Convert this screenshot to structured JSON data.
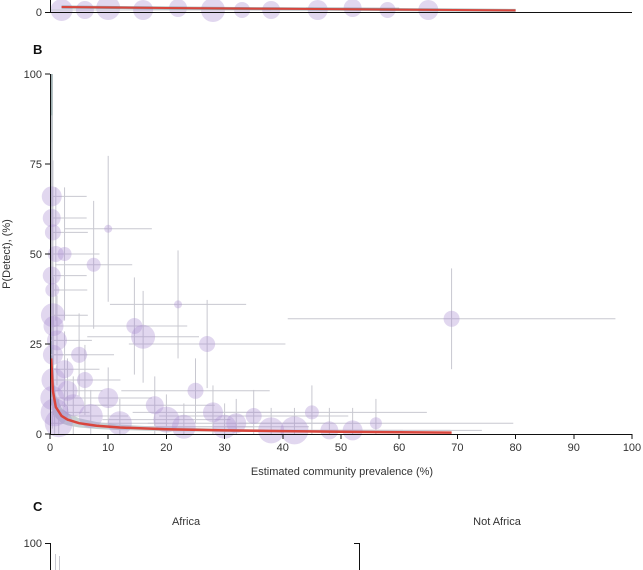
{
  "panels": {
    "top_partial": {
      "y_tick_zero": "0"
    },
    "B": {
      "letter": "B",
      "ylabel": "P(Detect), (%)",
      "xlabel": "Estimated community prevalence (%)",
      "x_ticks": [
        "0",
        "10",
        "20",
        "30",
        "40",
        "50",
        "60",
        "70",
        "80",
        "90",
        "100"
      ],
      "y_ticks": [
        "0",
        "25",
        "50",
        "75",
        "100"
      ]
    },
    "C": {
      "letter": "C",
      "facets": [
        "Africa",
        "Not Africa"
      ],
      "y_tick_top": "100"
    }
  },
  "colors": {
    "points": "#a98bd1",
    "error_bars": "#c8c8d0",
    "fit_line": "#d9453c",
    "ci_band": "#5f7d80"
  },
  "chart_data": [
    {
      "type": "scatter",
      "panel": "B",
      "xlabel": "Estimated community prevalence (%)",
      "ylabel": "P(Detect), (%)",
      "xlim": [
        0,
        100
      ],
      "ylim": [
        0,
        100
      ],
      "grid": false,
      "points": [
        {
          "x": 0.3,
          "y": 66,
          "size": 10
        },
        {
          "x": 0.3,
          "y": 60,
          "size": 9
        },
        {
          "x": 0.5,
          "y": 56,
          "size": 8
        },
        {
          "x": 1.0,
          "y": 50,
          "size": 8
        },
        {
          "x": 2.5,
          "y": 50,
          "size": 7
        },
        {
          "x": 0.3,
          "y": 44,
          "size": 9
        },
        {
          "x": 0.4,
          "y": 40,
          "size": 7
        },
        {
          "x": 0.5,
          "y": 33,
          "size": 12
        },
        {
          "x": 0.6,
          "y": 30,
          "size": 10
        },
        {
          "x": 1.2,
          "y": 26,
          "size": 10
        },
        {
          "x": 0.5,
          "y": 22,
          "size": 10
        },
        {
          "x": 0.6,
          "y": 15,
          "size": 12
        },
        {
          "x": 0.4,
          "y": 10,
          "size": 12
        },
        {
          "x": 0.8,
          "y": 6,
          "size": 14
        },
        {
          "x": 1.5,
          "y": 3,
          "size": 14
        },
        {
          "x": 2.5,
          "y": 18,
          "size": 9
        },
        {
          "x": 3.0,
          "y": 12,
          "size": 10
        },
        {
          "x": 4.0,
          "y": 8,
          "size": 11
        },
        {
          "x": 5.0,
          "y": 22,
          "size": 8
        },
        {
          "x": 6.0,
          "y": 15,
          "size": 8
        },
        {
          "x": 7.0,
          "y": 5,
          "size": 12
        },
        {
          "x": 7.5,
          "y": 47,
          "size": 7
        },
        {
          "x": 10.0,
          "y": 57,
          "size": 4
        },
        {
          "x": 10.0,
          "y": 10,
          "size": 10
        },
        {
          "x": 12.0,
          "y": 3,
          "size": 12
        },
        {
          "x": 14.5,
          "y": 30,
          "size": 8
        },
        {
          "x": 16.0,
          "y": 27,
          "size": 12
        },
        {
          "x": 18.0,
          "y": 8,
          "size": 9
        },
        {
          "x": 20.0,
          "y": 4,
          "size": 13
        },
        {
          "x": 22.0,
          "y": 36,
          "size": 4
        },
        {
          "x": 23.0,
          "y": 2,
          "size": 12
        },
        {
          "x": 25.0,
          "y": 12,
          "size": 8
        },
        {
          "x": 27.0,
          "y": 25,
          "size": 8
        },
        {
          "x": 28.0,
          "y": 6,
          "size": 10
        },
        {
          "x": 30.0,
          "y": 2,
          "size": 12
        },
        {
          "x": 32.0,
          "y": 3,
          "size": 10
        },
        {
          "x": 35.0,
          "y": 5,
          "size": 8
        },
        {
          "x": 38.0,
          "y": 1,
          "size": 13
        },
        {
          "x": 42.0,
          "y": 1,
          "size": 14
        },
        {
          "x": 45.0,
          "y": 6,
          "size": 7
        },
        {
          "x": 48.0,
          "y": 1,
          "size": 9
        },
        {
          "x": 52.0,
          "y": 1,
          "size": 10
        },
        {
          "x": 56.0,
          "y": 3,
          "size": 6
        },
        {
          "x": 69.0,
          "y": 32,
          "size": 8
        }
      ],
      "fit_line": {
        "x": [
          0.2,
          0.5,
          1,
          2,
          3,
          5,
          8,
          12,
          20,
          30,
          40,
          50,
          60,
          69
        ],
        "y": [
          21,
          12,
          7.5,
          5,
          4,
          3,
          2.3,
          1.8,
          1.3,
          1.0,
          0.8,
          0.6,
          0.5,
          0.4
        ]
      }
    },
    {
      "type": "scatter",
      "panel": "A",
      "xlim": [
        0,
        100
      ],
      "ylim_visible": [
        0,
        5
      ],
      "points": [
        {
          "x": 2,
          "y": 1,
          "size": 11
        },
        {
          "x": 6,
          "y": 1,
          "size": 9
        },
        {
          "x": 10,
          "y": 2,
          "size": 12
        },
        {
          "x": 16,
          "y": 1,
          "size": 10
        },
        {
          "x": 22,
          "y": 2,
          "size": 9
        },
        {
          "x": 28,
          "y": 1,
          "size": 12
        },
        {
          "x": 33,
          "y": 1,
          "size": 8
        },
        {
          "x": 38,
          "y": 1,
          "size": 9
        },
        {
          "x": 46,
          "y": 1,
          "size": 10
        },
        {
          "x": 52,
          "y": 2,
          "size": 9
        },
        {
          "x": 58,
          "y": 1,
          "size": 8
        },
        {
          "x": 65,
          "y": 1,
          "size": 10
        }
      ],
      "fit_line": {
        "x": [
          2,
          20,
          40,
          60,
          80
        ],
        "y": [
          2.5,
          2.0,
          1.6,
          1.2,
          0.8
        ]
      }
    }
  ]
}
